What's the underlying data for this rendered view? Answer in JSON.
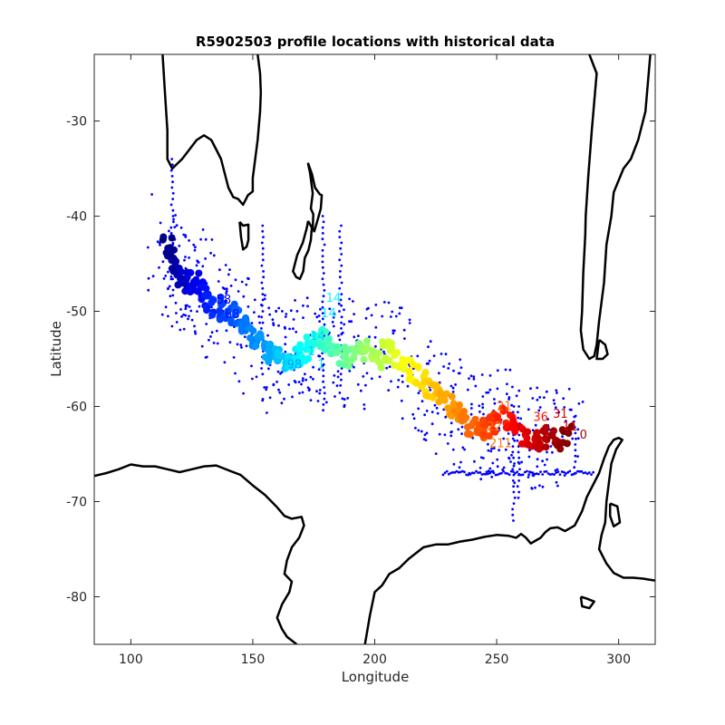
{
  "chart_data": {
    "type": "scatter",
    "title": "R5902503 profile locations with historical data",
    "xlabel": "Longitude",
    "ylabel": "Latitude",
    "xlim": [
      85,
      315
    ],
    "ylim": [
      -85,
      -23
    ],
    "xticks": [
      100,
      150,
      200,
      250,
      300
    ],
    "yticks": [
      -30,
      -40,
      -50,
      -60,
      -70,
      -80
    ],
    "grid": false,
    "colors": {
      "historical": "#0000ff",
      "coastline": "#000000",
      "colormap": "jet"
    },
    "coastlines": [
      [
        [
          113,
          -23
        ],
        [
          114,
          -27
        ],
        [
          115,
          -31
        ],
        [
          115,
          -34
        ],
        [
          117,
          -35
        ],
        [
          121,
          -34
        ],
        [
          124,
          -33
        ],
        [
          127,
          -32
        ],
        [
          130,
          -31.5
        ],
        [
          133,
          -32
        ],
        [
          135,
          -33
        ],
        [
          137,
          -34
        ],
        [
          138,
          -35
        ],
        [
          140,
          -37
        ],
        [
          142,
          -38
        ],
        [
          144,
          -38.2
        ],
        [
          146,
          -38.8
        ],
        [
          148,
          -37.8
        ],
        [
          150,
          -37.4
        ],
        [
          150,
          -36
        ],
        [
          151,
          -34
        ],
        [
          152,
          -32
        ],
        [
          153,
          -29
        ],
        [
          153.3,
          -27
        ],
        [
          153,
          -25
        ],
        [
          152,
          -23
        ]
      ],
      [
        [
          144.6,
          -40.6
        ],
        [
          146,
          -41
        ],
        [
          148.2,
          -40.9
        ],
        [
          148.2,
          -42.5
        ],
        [
          147.5,
          -43.2
        ],
        [
          146,
          -43.5
        ],
        [
          145.2,
          -42.2
        ],
        [
          144.6,
          -40.6
        ]
      ],
      [
        [
          172.6,
          -34.4
        ],
        [
          174.3,
          -35.6
        ],
        [
          175.5,
          -37
        ],
        [
          177.5,
          -37.7
        ],
        [
          178.3,
          -37.8
        ],
        [
          177.9,
          -39.2
        ],
        [
          176.8,
          -40.2
        ],
        [
          175.2,
          -41.6
        ],
        [
          174.6,
          -41.3
        ],
        [
          174.8,
          -39.8
        ],
        [
          173.8,
          -39.2
        ],
        [
          174.6,
          -37.6
        ],
        [
          173.5,
          -35.5
        ],
        [
          172.6,
          -34.4
        ]
      ],
      [
        [
          172.7,
          -40.5
        ],
        [
          174.2,
          -41.2
        ],
        [
          173.8,
          -42.5
        ],
        [
          172.8,
          -43.6
        ],
        [
          171.3,
          -44.4
        ],
        [
          170.7,
          -45.8
        ],
        [
          169.3,
          -46.6
        ],
        [
          167.8,
          -46.4
        ],
        [
          166.5,
          -45.8
        ],
        [
          168.2,
          -44.1
        ],
        [
          170.5,
          -42.8
        ],
        [
          172.1,
          -41.3
        ],
        [
          172.7,
          -40.5
        ]
      ],
      [
        [
          288,
          -23
        ],
        [
          291,
          -25
        ],
        [
          289,
          -31
        ],
        [
          287.5,
          -36
        ],
        [
          286.5,
          -40
        ],
        [
          286.3,
          -42
        ],
        [
          285.5,
          -46
        ],
        [
          285,
          -50
        ],
        [
          284.5,
          -52
        ],
        [
          285.5,
          -54
        ],
        [
          288,
          -55
        ],
        [
          290,
          -54.7
        ],
        [
          291,
          -53.5
        ],
        [
          292,
          -51
        ],
        [
          294,
          -47
        ],
        [
          295,
          -43
        ],
        [
          297,
          -40
        ],
        [
          298,
          -37.5
        ],
        [
          302,
          -35
        ],
        [
          305,
          -34
        ],
        [
          308,
          -32
        ],
        [
          311,
          -29
        ],
        [
          312,
          -26
        ],
        [
          313,
          -23
        ]
      ],
      [
        [
          292,
          -53
        ],
        [
          294.5,
          -53.5
        ],
        [
          295.5,
          -54.5
        ],
        [
          293.5,
          -55
        ],
        [
          291,
          -55
        ],
        [
          292,
          -53
        ]
      ],
      [
        [
          85,
          -67.3
        ],
        [
          90,
          -67
        ],
        [
          95,
          -66.6
        ],
        [
          100,
          -66.1
        ],
        [
          105,
          -66.3
        ],
        [
          110,
          -66.3
        ],
        [
          115,
          -66.6
        ],
        [
          120,
          -66.9
        ],
        [
          125,
          -66.6
        ],
        [
          130,
          -66.3
        ],
        [
          135,
          -66.2
        ],
        [
          140,
          -66.7
        ],
        [
          145,
          -67.2
        ],
        [
          150,
          -68.3
        ],
        [
          155,
          -69.3
        ],
        [
          160,
          -70.6
        ],
        [
          163,
          -71.5
        ],
        [
          166,
          -71.8
        ],
        [
          170,
          -71.6
        ],
        [
          171,
          -72.5
        ],
        [
          169,
          -73.8
        ],
        [
          166,
          -74.8
        ],
        [
          164,
          -76.2
        ],
        [
          163,
          -77.6
        ],
        [
          166,
          -78.4
        ],
        [
          165,
          -79.5
        ],
        [
          162,
          -80.8
        ],
        [
          160,
          -82.2
        ],
        [
          162,
          -83.4
        ],
        [
          164,
          -84.2
        ],
        [
          168,
          -85
        ]
      ],
      [
        [
          196,
          -85
        ],
        [
          198,
          -82
        ],
        [
          200,
          -79.5
        ],
        [
          203,
          -78.8
        ],
        [
          206,
          -77.6
        ],
        [
          210,
          -77
        ],
        [
          214,
          -76
        ],
        [
          218,
          -75.2
        ],
        [
          220,
          -74.8
        ],
        [
          225,
          -74.5
        ],
        [
          230,
          -74.5
        ],
        [
          235,
          -74.2
        ],
        [
          240,
          -74
        ],
        [
          245,
          -73.7
        ],
        [
          250,
          -73.5
        ],
        [
          255,
          -73.6
        ],
        [
          258,
          -73.8
        ],
        [
          260,
          -73.4
        ],
        [
          262,
          -73.8
        ],
        [
          264,
          -74.4
        ],
        [
          266,
          -74.1
        ],
        [
          268,
          -73.8
        ],
        [
          270,
          -73.2
        ],
        [
          272,
          -72.8
        ],
        [
          275,
          -72.7
        ],
        [
          278,
          -73.1
        ],
        [
          280,
          -72.8
        ],
        [
          282,
          -72.5
        ],
        [
          285,
          -71
        ],
        [
          287,
          -69.5
        ],
        [
          290,
          -68
        ],
        [
          292,
          -67
        ],
        [
          294,
          -65.5
        ],
        [
          296,
          -64.2
        ],
        [
          298,
          -63.5
        ],
        [
          300,
          -63.3
        ],
        [
          301.5,
          -63.5
        ],
        [
          299,
          -64.5
        ],
        [
          297,
          -66
        ],
        [
          296,
          -68
        ],
        [
          295,
          -70
        ],
        [
          294.5,
          -72.2
        ],
        [
          293,
          -73.5
        ],
        [
          292,
          -75
        ],
        [
          295,
          -76.5
        ],
        [
          298,
          -77.5
        ],
        [
          302,
          -78
        ],
        [
          306,
          -78
        ],
        [
          310,
          -78.1
        ],
        [
          315,
          -78.3
        ]
      ],
      [
        [
          284.5,
          -80
        ],
        [
          287,
          -80.2
        ],
        [
          290,
          -80.5
        ],
        [
          288,
          -81.2
        ],
        [
          285,
          -81
        ],
        [
          284.5,
          -80
        ]
      ],
      [
        [
          296.5,
          -70.2
        ],
        [
          299.5,
          -70.5
        ],
        [
          300.5,
          -72.2
        ],
        [
          298,
          -72.6
        ],
        [
          296.5,
          -71.5
        ],
        [
          296.5,
          -70.2
        ]
      ]
    ],
    "track": [
      [
        115.0,
        -43.0
      ],
      [
        116.5,
        -44.5
      ],
      [
        118,
        -45.6
      ],
      [
        120,
        -46.2
      ],
      [
        122,
        -46.5
      ],
      [
        124,
        -46.8
      ],
      [
        126,
        -47.0
      ],
      [
        128,
        -47.6
      ],
      [
        130,
        -48.4
      ],
      [
        132,
        -49.0
      ],
      [
        135,
        -49.6
      ],
      [
        138,
        -50.0
      ],
      [
        141,
        -50.3
      ],
      [
        144,
        -50.8
      ],
      [
        147,
        -51.8
      ],
      [
        150,
        -52.8
      ],
      [
        153,
        -53.4
      ],
      [
        156,
        -54.2
      ],
      [
        159,
        -54.8
      ],
      [
        162,
        -55.2
      ],
      [
        165,
        -55.0
      ],
      [
        168,
        -54.6
      ],
      [
        171,
        -54.3
      ],
      [
        174,
        -53.4
      ],
      [
        177,
        -52.8
      ],
      [
        180,
        -53.2
      ],
      [
        183,
        -54.3
      ],
      [
        186,
        -54.8
      ],
      [
        189,
        -54.9
      ],
      [
        192,
        -54.4
      ],
      [
        195,
        -54.0
      ],
      [
        198,
        -54.6
      ],
      [
        201,
        -55.0
      ],
      [
        204,
        -54.2
      ],
      [
        207,
        -53.8
      ],
      [
        210,
        -55.2
      ],
      [
        213,
        -56.0
      ],
      [
        216,
        -56.6
      ],
      [
        219,
        -57.4
      ],
      [
        222,
        -58.2
      ],
      [
        225,
        -58.8
      ],
      [
        228,
        -59.4
      ],
      [
        231,
        -60.0
      ],
      [
        234,
        -60.8
      ],
      [
        237,
        -61.4
      ],
      [
        240,
        -62.0
      ],
      [
        243,
        -62.2
      ],
      [
        246,
        -62.0
      ],
      [
        249,
        -61.6
      ],
      [
        252,
        -61.2
      ],
      [
        255,
        -62.0
      ],
      [
        258,
        -62.6
      ],
      [
        261,
        -63.0
      ],
      [
        264,
        -63.2
      ],
      [
        267,
        -63.4
      ],
      [
        270,
        -63.2
      ],
      [
        273,
        -63.6
      ],
      [
        276,
        -63.4
      ],
      [
        279,
        -63.0
      ]
    ],
    "profile_labels": [
      {
        "text": "58",
        "x": 135.0,
        "y": -49.2
      },
      {
        "text": "68",
        "x": 138.5,
        "y": -50.7
      },
      {
        "text": "98",
        "x": 164.0,
        "y": -56.0
      },
      {
        "text": "1",
        "x": 172.5,
        "y": -54.6
      },
      {
        "text": "1",
        "x": 176.5,
        "y": -56.0
      },
      {
        "text": "14",
        "x": 173.5,
        "y": -53.0
      },
      {
        "text": "14",
        "x": 178.0,
        "y": -50.6
      },
      {
        "text": "14",
        "x": 180.0,
        "y": -49.0
      },
      {
        "text": "22",
        "x": 246.0,
        "y": -62.5
      },
      {
        "text": "21",
        "x": 250.0,
        "y": -60.4
      },
      {
        "text": "211",
        "x": 247.0,
        "y": -64.3
      },
      {
        "text": "36",
        "x": 265.0,
        "y": -61.5
      },
      {
        "text": "31",
        "x": 273.0,
        "y": -61.2
      },
      {
        "text": "11",
        "x": 277.0,
        "y": -62.5
      },
      {
        "text": "0",
        "x": 284.0,
        "y": -63.4
      }
    ]
  }
}
